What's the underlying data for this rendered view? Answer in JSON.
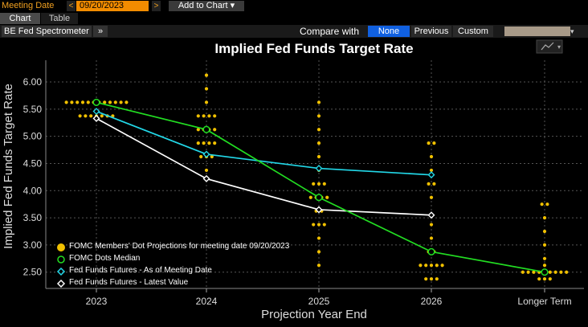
{
  "toolbar": {
    "meeting_date_label": "Meeting Date",
    "prev_glyph": "<",
    "meeting_date_value": "09/20/2023",
    "next_glyph": ">",
    "add_to_chart": "Add to Chart ▾"
  },
  "tabs": [
    {
      "label": "Chart"
    },
    {
      "label": "Table"
    }
  ],
  "subbar": {
    "spectrometer_label": "BE Fed Spectrometer",
    "expand_glyph": "»",
    "compare_label": "Compare with",
    "compare_options": [
      "None",
      "Previous",
      "Custom"
    ],
    "selected_compare": "None",
    "swatch_color": "#a89a88"
  },
  "chart_data": {
    "type": "line",
    "title": "Implied Fed Funds Target Rate",
    "xlabel": "Projection Year End",
    "ylabel": "Implied Fed Funds Target Rate",
    "categories": [
      "2023",
      "2024",
      "2025",
      "2026",
      "Longer Term"
    ],
    "ylim": [
      2.2,
      6.4
    ],
    "yticks": [
      "6.00",
      "5.50",
      "5.00",
      "4.50",
      "4.00",
      "3.50",
      "3.00",
      "2.50"
    ],
    "grid": true,
    "legend_position": "bottom-left",
    "colors": {
      "dots": "#f0c000",
      "median": "#22dd22",
      "meeting": "#22d8e8",
      "latest": "#ffffff"
    },
    "dot_projections": [
      {
        "category": "2023",
        "points": [
          [
            5.625,
            12
          ],
          [
            5.375,
            7
          ]
        ]
      },
      {
        "category": "2024",
        "points": [
          [
            6.125,
            1
          ],
          [
            5.875,
            1
          ],
          [
            5.625,
            1
          ],
          [
            5.375,
            4
          ],
          [
            5.125,
            4
          ],
          [
            4.875,
            4
          ],
          [
            4.625,
            3
          ],
          [
            4.375,
            1
          ]
        ]
      },
      {
        "category": "2025",
        "points": [
          [
            5.625,
            1
          ],
          [
            5.375,
            1
          ],
          [
            5.125,
            1
          ],
          [
            4.875,
            1
          ],
          [
            4.625,
            1
          ],
          [
            4.375,
            1
          ],
          [
            4.125,
            3
          ],
          [
            3.875,
            4
          ],
          [
            3.625,
            2
          ],
          [
            3.375,
            3
          ],
          [
            3.125,
            1
          ],
          [
            2.875,
            1
          ],
          [
            2.625,
            1
          ]
        ]
      },
      {
        "category": "2026",
        "points": [
          [
            4.875,
            2
          ],
          [
            4.625,
            1
          ],
          [
            4.375,
            1
          ],
          [
            4.125,
            2
          ],
          [
            3.875,
            1
          ],
          [
            3.375,
            1
          ],
          [
            3.125,
            1
          ],
          [
            2.875,
            2
          ],
          [
            2.625,
            5
          ],
          [
            2.375,
            3
          ]
        ]
      },
      {
        "category": "Longer Term",
        "points": [
          [
            3.75,
            2
          ],
          [
            3.5,
            1
          ],
          [
            3.25,
            1
          ],
          [
            3.0,
            1
          ],
          [
            2.75,
            1
          ],
          [
            2.625,
            1
          ],
          [
            2.5,
            9
          ],
          [
            2.375,
            3
          ]
        ]
      }
    ],
    "series": [
      {
        "name": "FOMC Dots Median",
        "key": "median",
        "values": [
          5.625,
          5.125,
          3.875,
          2.875,
          2.5
        ]
      },
      {
        "name": "Fed Funds Futures - As of Meeting Date",
        "key": "meeting",
        "values": [
          5.46,
          4.67,
          4.41,
          4.29,
          null
        ]
      },
      {
        "name": "Fed Funds Futures - Latest Value",
        "key": "latest",
        "values": [
          5.33,
          4.22,
          3.65,
          3.55,
          null
        ]
      }
    ],
    "legend": [
      {
        "label": "FOMC Members' Dot Projections for meeting date 09/20/2023",
        "key": "dots"
      },
      {
        "label": "FOMC Dots Median",
        "key": "median"
      },
      {
        "label": "Fed Funds Futures - As of Meeting Date",
        "key": "meeting"
      },
      {
        "label": "Fed Funds Futures - Latest Value",
        "key": "latest"
      }
    ]
  }
}
